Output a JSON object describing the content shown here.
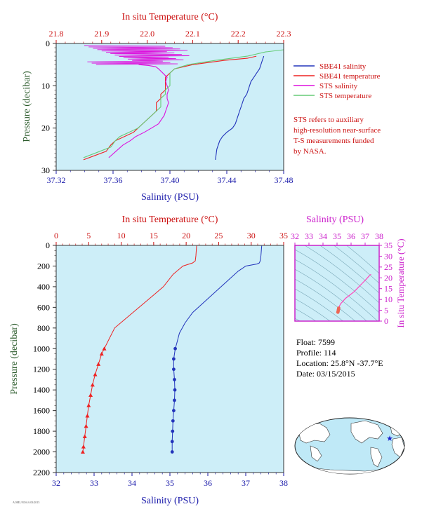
{
  "colors": {
    "plot_bg": "#cdeef8",
    "salinity_axis": "#1a1aaa",
    "temperature_axis": "#cc1111",
    "sbe41_salinity": "#2233bb",
    "sbe41_temperature": "#ee2222",
    "sts_salinity": "#dd11dd",
    "sts_temperature": "#66cc77",
    "ts_axis": "#cc22cc",
    "pressure_label": "#2a5a2a"
  },
  "top_chart": {
    "top_title": "In situ Temperature (°C)",
    "x_top_ticks": [
      "21.8",
      "21.9",
      "22.0",
      "22.1",
      "22.2",
      "22.3"
    ],
    "xlabel": "Salinity (PSU)",
    "x_bottom_ticks": [
      "37.32",
      "37.36",
      "37.40",
      "37.44",
      "37.48"
    ],
    "ylabel": "Pressure (decibar)",
    "y_ticks": [
      "0",
      "10",
      "20",
      "30"
    ],
    "legend": [
      "SBE41 salinity",
      "SBE41 temperature",
      "STS salinity",
      "STS temperature"
    ],
    "note": [
      "STS refers to auxiliary",
      "high-resolution near-surface",
      "T-S measurements funded",
      "by NASA."
    ]
  },
  "bottom_chart": {
    "top_title": "In situ Temperature (°C)",
    "x_top_ticks": [
      "0",
      "5",
      "10",
      "15",
      "20",
      "25",
      "30",
      "35"
    ],
    "xlabel": "Salinity (PSU)",
    "x_bottom_ticks": [
      "32",
      "33",
      "34",
      "35",
      "36",
      "37",
      "38"
    ],
    "ylabel": "Pressure (decibar)",
    "y_ticks": [
      "0",
      "200",
      "400",
      "600",
      "800",
      "1000",
      "1200",
      "1400",
      "1600",
      "1800",
      "2000",
      "2200"
    ]
  },
  "ts_chart": {
    "top_title": "Salinity (PSU)",
    "x_ticks": [
      "32",
      "33",
      "34",
      "35",
      "36",
      "37",
      "38"
    ],
    "ylabel": "In situ Temperature (°C)",
    "y_ticks": [
      "0",
      "5",
      "10",
      "15",
      "20",
      "25",
      "30",
      "35"
    ]
  },
  "float_info": {
    "float": "Float: 7599",
    "profile": "Profile: 114",
    "location": "Location: 25.8°N -37.7°E",
    "date": "Date: 03/15/2015"
  },
  "map": {
    "float_lat": 25.8,
    "float_lon": -37.7
  },
  "footer_credit": "AOML/NOAA 03/2015",
  "chart_data": [
    {
      "type": "line",
      "title": "",
      "xlabel": "Salinity (PSU)",
      "x2label": "In situ Temperature (°C)",
      "ylabel": "Pressure (decibar)",
      "xlim": [
        37.32,
        37.48
      ],
      "x2lim": [
        21.8,
        22.3
      ],
      "ylim": [
        30,
        0
      ],
      "series": [
        {
          "name": "SBE41 salinity",
          "axis": "salinity",
          "x": [
            37.466,
            37.465,
            37.464,
            37.463,
            37.461,
            37.459,
            37.457,
            37.456,
            37.455,
            37.454,
            37.452,
            37.451,
            37.45,
            37.449,
            37.448,
            37.447,
            37.446,
            37.444,
            37.44,
            37.437,
            37.435,
            37.433,
            37.432
          ],
          "y": [
            3,
            4,
            5,
            6,
            7,
            8,
            9,
            10,
            11,
            12,
            13,
            14,
            15,
            16,
            17,
            18,
            19,
            20,
            21,
            22,
            23,
            25,
            27.5
          ]
        },
        {
          "name": "SBE41 temperature",
          "axis": "temperature",
          "x": [
            22.24,
            22.22,
            22.17,
            22.1,
            22.06,
            22.05,
            22.04,
            22.04,
            22.04,
            22.03,
            22.03,
            22.02,
            22.02,
            22.02,
            22.01,
            22.0,
            21.99,
            21.98,
            21.97,
            21.95,
            21.93,
            21.92,
            21.91,
            21.86
          ],
          "y": [
            3,
            3.5,
            4,
            5,
            6,
            7,
            8,
            10,
            11,
            12,
            13,
            14,
            15,
            16,
            17,
            18,
            19,
            20,
            21,
            22,
            23,
            24,
            25.5,
            27.5
          ]
        },
        {
          "name": "STS salinity",
          "axis": "salinity",
          "x": [
            37.378,
            37.385,
            37.39,
            37.392,
            37.395,
            37.398,
            37.397,
            37.398,
            37.399,
            37.398,
            37.398,
            37.399,
            37.398,
            37.397,
            37.396,
            37.394,
            37.392,
            37.387,
            37.382,
            37.376,
            37.372,
            37.367,
            37.362,
            37.357
          ],
          "y": [
            5,
            5.2,
            5.5,
            6,
            7,
            8,
            9,
            10,
            11,
            12,
            13,
            14,
            15,
            16,
            17,
            18,
            19,
            20,
            21,
            22,
            23,
            24,
            25.5,
            27
          ]
        },
        {
          "name": "STS temperature",
          "axis": "temperature",
          "x": [
            22.3,
            22.26,
            22.22,
            22.15,
            22.09,
            22.06,
            22.05,
            22.05,
            22.05,
            22.04,
            22.04,
            22.03,
            22.03,
            22.03,
            22.02,
            22.01,
            22.0,
            21.99,
            21.98,
            21.96,
            21.94,
            21.93,
            21.92,
            21.86
          ],
          "y": [
            1.5,
            2,
            3,
            4,
            5,
            6,
            7,
            9,
            10,
            11,
            12,
            13,
            14,
            15,
            16,
            17,
            18,
            19,
            20,
            21,
            22,
            23,
            24.5,
            27
          ]
        }
      ]
    },
    {
      "type": "line",
      "title": "",
      "xlabel": "Salinity (PSU)",
      "x2label": "In situ Temperature (°C)",
      "ylabel": "Pressure (decibar)",
      "xlim": [
        32,
        38
      ],
      "x2lim": [
        0,
        35
      ],
      "ylim": [
        2200,
        0
      ],
      "series": [
        {
          "name": "",
          "axis": "salinity",
          "x": [
            37.42,
            37.4,
            37.38,
            37.36,
            37.3,
            37.0,
            36.8,
            36.5,
            36.2,
            35.9,
            35.6,
            35.4,
            35.25,
            35.18,
            35.14,
            35.1,
            35.1,
            35.12,
            35.13,
            35.12,
            35.1,
            35.08,
            35.07,
            35.06,
            35.06
          ],
          "y": [
            5,
            100,
            150,
            170,
            180,
            200,
            250,
            350,
            450,
            550,
            650,
            750,
            850,
            950,
            1000,
            1100,
            1200,
            1300,
            1400,
            1500,
            1600,
            1700,
            1800,
            1900,
            2000
          ]
        },
        {
          "name": "",
          "axis": "temperature",
          "x": [
            21.6,
            21.5,
            21.4,
            21.0,
            19.5,
            18.0,
            16.5,
            15.0,
            13.5,
            12.0,
            10.5,
            9.0,
            8.2,
            7.4,
            7.0,
            6.5,
            6.0,
            5.6,
            5.3,
            5.0,
            4.8,
            4.6,
            4.4,
            4.2,
            4.1
          ],
          "y": [
            5,
            100,
            150,
            170,
            200,
            280,
            400,
            480,
            560,
            640,
            720,
            800,
            900,
            1000,
            1050,
            1150,
            1250,
            1350,
            1450,
            1550,
            1650,
            1750,
            1850,
            1950,
            2000
          ]
        }
      ]
    },
    {
      "type": "line",
      "title": "",
      "xlabel": "Salinity (PSU)",
      "ylabel": "In situ Temperature (°C)",
      "xlim": [
        32,
        38
      ],
      "ylim": [
        0,
        35
      ],
      "series": [
        {
          "name": "",
          "x": [
            37.42,
            37.3,
            37.1,
            36.8,
            36.5,
            36.2,
            35.9,
            35.6,
            35.4,
            35.25,
            35.18,
            35.12,
            35.1,
            35.08,
            35.06
          ],
          "y": [
            21.6,
            21.0,
            19.5,
            17.5,
            15.5,
            13.5,
            12.0,
            10.5,
            9.0,
            8.0,
            7.0,
            6.0,
            5.3,
            4.6,
            4.1
          ]
        }
      ]
    }
  ]
}
